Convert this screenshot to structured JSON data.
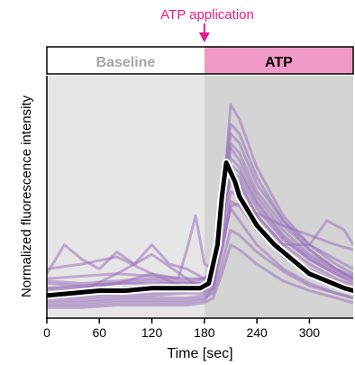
{
  "chart_data": {
    "type": "line",
    "xlabel": "Time [sec]",
    "ylabel": "Normalized fluorescence intensity",
    "xlim": [
      0,
      350
    ],
    "ylim": [
      0,
      1
    ],
    "xticks": [
      0,
      60,
      120,
      180,
      240,
      300
    ],
    "y_axis_tick_labels_shown": false,
    "grid": false,
    "phases": [
      {
        "label": "Baseline",
        "start": 0,
        "end": 180,
        "band_color": "#ffffff",
        "label_color": "#a6a6a6",
        "background_color": "#e6e6e6"
      },
      {
        "label": "ATP",
        "start": 180,
        "end": 350,
        "band_color": "#f09ac8",
        "label_color": "#000000",
        "background_color": "#d4d4d4"
      }
    ],
    "annotation": {
      "text": "ATP application",
      "x": 180,
      "color": "#e8198b"
    },
    "individual_trace_color": "#9a72bc",
    "mean_trace_color": "#000000",
    "mean_trace_outline_color": "#ffffff",
    "mean_trace": {
      "x": [
        0,
        30,
        60,
        90,
        120,
        150,
        175,
        185,
        195,
        200,
        205,
        210,
        215,
        220,
        230,
        240,
        260,
        280,
        300,
        320,
        340,
        350
      ],
      "y": [
        0.09,
        0.1,
        0.11,
        0.11,
        0.12,
        0.12,
        0.12,
        0.14,
        0.3,
        0.5,
        0.64,
        0.6,
        0.56,
        0.5,
        0.44,
        0.38,
        0.3,
        0.24,
        0.18,
        0.15,
        0.12,
        0.11
      ]
    },
    "individual_traces": [
      {
        "x": [
          0,
          40,
          80,
          120,
          160,
          180,
          190,
          200,
          210,
          220,
          240,
          270,
          300,
          330,
          350
        ],
        "y": [
          0.05,
          0.05,
          0.06,
          0.06,
          0.06,
          0.07,
          0.12,
          0.3,
          0.45,
          0.4,
          0.3,
          0.2,
          0.14,
          0.1,
          0.08
        ]
      },
      {
        "x": [
          0,
          40,
          80,
          120,
          160,
          180,
          190,
          200,
          210,
          220,
          240,
          270,
          300,
          330,
          350
        ],
        "y": [
          0.15,
          0.14,
          0.15,
          0.16,
          0.15,
          0.16,
          0.2,
          0.45,
          0.7,
          0.65,
          0.5,
          0.36,
          0.26,
          0.2,
          0.17
        ]
      },
      {
        "x": [
          0,
          40,
          80,
          120,
          160,
          180,
          190,
          200,
          210,
          220,
          240,
          270,
          300,
          330,
          350
        ],
        "y": [
          0.08,
          0.08,
          0.09,
          0.09,
          0.1,
          0.1,
          0.13,
          0.35,
          0.58,
          0.55,
          0.42,
          0.3,
          0.22,
          0.16,
          0.13
        ]
      },
      {
        "x": [
          0,
          40,
          80,
          120,
          160,
          180,
          190,
          200,
          210,
          220,
          240,
          270,
          300,
          330,
          350
        ],
        "y": [
          0.12,
          0.12,
          0.12,
          0.13,
          0.13,
          0.13,
          0.16,
          0.4,
          0.63,
          0.6,
          0.47,
          0.33,
          0.24,
          0.18,
          0.15
        ]
      },
      {
        "x": [
          0,
          40,
          80,
          120,
          160,
          180,
          190,
          200,
          210,
          220,
          240,
          270,
          300,
          330,
          350
        ],
        "y": [
          0.06,
          0.06,
          0.07,
          0.07,
          0.07,
          0.08,
          0.1,
          0.22,
          0.36,
          0.34,
          0.27,
          0.19,
          0.13,
          0.1,
          0.08
        ]
      },
      {
        "x": [
          0,
          40,
          80,
          120,
          160,
          180,
          190,
          200,
          210,
          220,
          240,
          270,
          300,
          330,
          350
        ],
        "y": [
          0.2,
          0.22,
          0.25,
          0.18,
          0.12,
          0.12,
          0.18,
          0.5,
          0.8,
          0.76,
          0.58,
          0.4,
          0.28,
          0.2,
          0.16
        ]
      },
      {
        "x": [
          0,
          40,
          80,
          120,
          160,
          180,
          190,
          200,
          210,
          220,
          240,
          270,
          300,
          330,
          350
        ],
        "y": [
          0.1,
          0.11,
          0.18,
          0.26,
          0.16,
          0.11,
          0.14,
          0.42,
          0.88,
          0.82,
          0.62,
          0.42,
          0.3,
          0.22,
          0.18
        ]
      },
      {
        "x": [
          0,
          20,
          40,
          60,
          80,
          100,
          120,
          140,
          160,
          180,
          190,
          200,
          210,
          220,
          240,
          270,
          300,
          330,
          350
        ],
        "y": [
          0.18,
          0.3,
          0.24,
          0.2,
          0.27,
          0.22,
          0.3,
          0.22,
          0.2,
          0.16,
          0.2,
          0.45,
          0.72,
          0.68,
          0.52,
          0.38,
          0.28,
          0.2,
          0.16
        ]
      },
      {
        "x": [
          0,
          40,
          80,
          120,
          150,
          160,
          170,
          180,
          190,
          200,
          210,
          220,
          240,
          270,
          300,
          330,
          350
        ],
        "y": [
          0.1,
          0.12,
          0.14,
          0.18,
          0.16,
          0.28,
          0.42,
          0.22,
          0.2,
          0.4,
          0.6,
          0.58,
          0.45,
          0.32,
          0.24,
          0.18,
          0.14
        ]
      },
      {
        "x": [
          0,
          40,
          80,
          120,
          160,
          180,
          190,
          200,
          210,
          220,
          240,
          270,
          300,
          330,
          350
        ],
        "y": [
          0.14,
          0.13,
          0.14,
          0.14,
          0.14,
          0.15,
          0.17,
          0.28,
          0.46,
          0.47,
          0.43,
          0.38,
          0.34,
          0.3,
          0.28
        ]
      },
      {
        "x": [
          0,
          40,
          80,
          120,
          160,
          180,
          190,
          200,
          210,
          220,
          240,
          270,
          300,
          330,
          350
        ],
        "y": [
          0.09,
          0.09,
          0.1,
          0.1,
          0.11,
          0.11,
          0.14,
          0.32,
          0.52,
          0.5,
          0.38,
          0.27,
          0.2,
          0.15,
          0.12
        ]
      },
      {
        "x": [
          0,
          40,
          80,
          120,
          160,
          180,
          190,
          200,
          210,
          220,
          240,
          270,
          300,
          330,
          350
        ],
        "y": [
          0.04,
          0.04,
          0.05,
          0.05,
          0.05,
          0.06,
          0.08,
          0.18,
          0.3,
          0.28,
          0.22,
          0.15,
          0.11,
          0.08,
          0.06
        ]
      },
      {
        "x": [
          0,
          40,
          80,
          120,
          160,
          180,
          190,
          200,
          210,
          220,
          240,
          270,
          300,
          320,
          340,
          350
        ],
        "y": [
          0.12,
          0.13,
          0.14,
          0.15,
          0.14,
          0.14,
          0.18,
          0.38,
          0.6,
          0.56,
          0.42,
          0.3,
          0.3,
          0.4,
          0.36,
          0.3
        ]
      },
      {
        "x": [
          0,
          40,
          80,
          120,
          160,
          180,
          190,
          200,
          210,
          220,
          240,
          270,
          300,
          330,
          350
        ],
        "y": [
          0.16,
          0.17,
          0.18,
          0.17,
          0.16,
          0.16,
          0.19,
          0.44,
          0.76,
          0.72,
          0.55,
          0.4,
          0.3,
          0.24,
          0.2
        ]
      },
      {
        "x": [
          0,
          40,
          80,
          120,
          160,
          180,
          190,
          200,
          210,
          220,
          240,
          270,
          300,
          330,
          350
        ],
        "y": [
          0.07,
          0.07,
          0.08,
          0.08,
          0.08,
          0.09,
          0.12,
          0.28,
          0.48,
          0.46,
          0.36,
          0.25,
          0.18,
          0.13,
          0.1
        ]
      },
      {
        "x": [
          0,
          40,
          80,
          120,
          160,
          180,
          190,
          200,
          210,
          220,
          240,
          270,
          300,
          330,
          350
        ],
        "y": [
          0.11,
          0.11,
          0.12,
          0.13,
          0.12,
          0.12,
          0.15,
          0.36,
          0.66,
          0.62,
          0.48,
          0.34,
          0.25,
          0.19,
          0.16
        ]
      }
    ]
  }
}
